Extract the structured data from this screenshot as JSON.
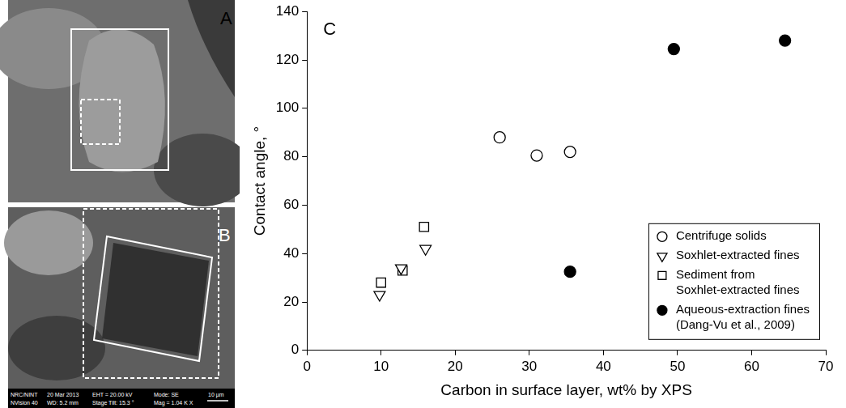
{
  "panels": [
    {
      "label": "A"
    },
    {
      "label": "B",
      "footer": [
        [
          "NRC/NINT",
          "20 Mar 2013",
          "EHT = 20.00 kV",
          "Mode: SE"
        ],
        [
          "NVision 40",
          "WD: 5.2 mm",
          "Stage Tilt: 15.3 °",
          "Mag = 1.04 K X"
        ]
      ],
      "scale_bar": "10 µm"
    }
  ],
  "chart_data": {
    "type": "scatter",
    "panel_label": "C",
    "x_label": "Carbon in surface layer, wt% by XPS",
    "y_label": "Contact angle, °",
    "xlim": [
      0,
      70
    ],
    "xticks": [
      0,
      10,
      20,
      30,
      40,
      50,
      60,
      70
    ],
    "ylim": [
      0,
      140
    ],
    "yticks": [
      0,
      20,
      40,
      60,
      80,
      100,
      120,
      140
    ],
    "grid": false,
    "legend": "lower right",
    "series": [
      {
        "name": "Centrifuge solids",
        "color": "#000000",
        "marker": "open_circle",
        "x": [
          26,
          31,
          35.5
        ],
        "values": [
          88,
          80.5,
          82
        ]
      },
      {
        "name": "Soxhlet-extracted fines",
        "color": "#000000",
        "marker": "open_triangle_down",
        "x": [
          9.8,
          12.7,
          16
        ],
        "values": [
          23,
          34,
          42
        ]
      },
      {
        "name": "Sediment from Soxhlet-extracted fines",
        "color": "#000000",
        "marker": "open_square",
        "x": [
          10,
          12.9,
          15.8
        ],
        "values": [
          28,
          33,
          51
        ]
      },
      {
        "name": "Aqueous-extraction fines (Dang-Vu et al., 2009)",
        "color": "#000000",
        "marker": "filled_circle",
        "x": [
          35.5,
          49.5,
          64.5
        ],
        "values": [
          32.5,
          124.5,
          128
        ]
      }
    ]
  }
}
